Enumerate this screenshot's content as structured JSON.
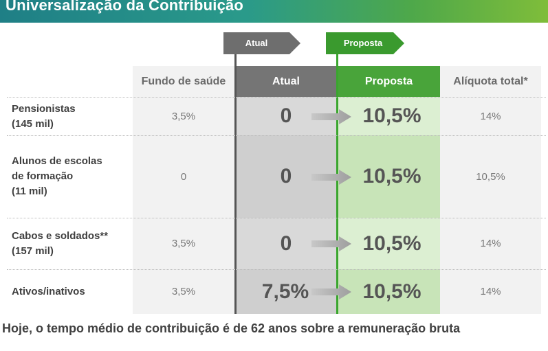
{
  "title": "Universalização da Contribuição",
  "flags": {
    "atual": "Atual",
    "proposta": "Proposta"
  },
  "headers": [
    "Fundo de saúde",
    "Atual",
    "Proposta",
    "Alíquota total*"
  ],
  "rows": [
    {
      "label": [
        "Pensionistas",
        "(145 mil)"
      ],
      "fundo": "3,5%",
      "atual": "0",
      "proposta": "10,5%",
      "total": "14%"
    },
    {
      "label": [
        "Alunos de escolas",
        "de formação",
        "(11 mil)"
      ],
      "fundo": "0",
      "atual": "0",
      "proposta": "10,5%",
      "total": "10,5%"
    },
    {
      "label": [
        "Cabos e soldados**",
        "(157 mil)"
      ],
      "fundo": "3,5%",
      "atual": "0",
      "proposta": "10,5%",
      "total": "14%"
    },
    {
      "label": [
        "Ativos/inativos"
      ],
      "fundo": "3,5%",
      "atual": "7,5%",
      "proposta": "10,5%",
      "total": "14%"
    }
  ],
  "footer": "Hoje, o tempo médio de contribuição é de 62 anos sobre a remuneração bruta",
  "colors": {
    "gray": "#757575",
    "green": "#49a43a",
    "light_green": "#c8e4b8"
  }
}
